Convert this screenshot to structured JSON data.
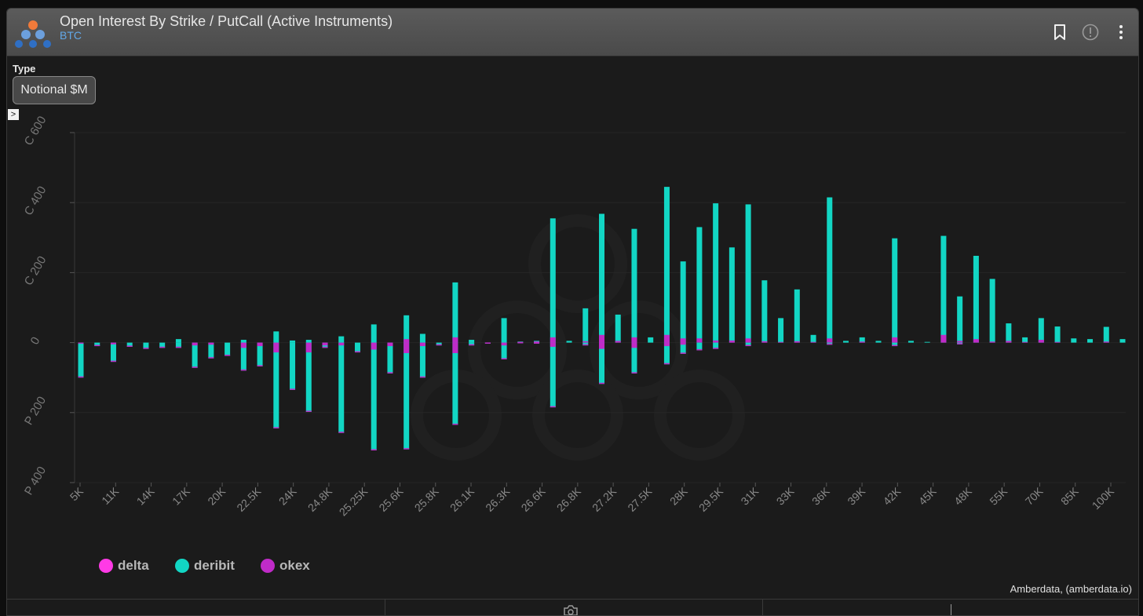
{
  "header": {
    "title": "Open Interest By Strike / PutCall (Active Instruments)",
    "subtitle": "BTC",
    "icons": [
      "bookmark-icon",
      "info-icon",
      "more-vertical-icon"
    ]
  },
  "controls": {
    "type_label": "Type",
    "type_value": "Notional $M"
  },
  "footer": {
    "attribution": "Amberdata, (amberdata.io)"
  },
  "colors": {
    "background": "#1b1b1b",
    "header": "#4f4f4f",
    "accent_link": "#62a8e8",
    "delta": "#ff3ae6",
    "deribit": "#12d6c4",
    "okex": "#c02bc8"
  },
  "chart_data": {
    "type": "bar",
    "stacked": true,
    "yticks": [
      "C 600",
      "C 400",
      "C 200",
      "0",
      "P 200",
      "P 400"
    ],
    "ytick_values": [
      600,
      400,
      200,
      0,
      -200,
      -400
    ],
    "ylim": [
      -400,
      600
    ],
    "xticks": [
      "5K",
      "11K",
      "14K",
      "17K",
      "20K",
      "22.5K",
      "24K",
      "24.8K",
      "25.25K",
      "25.6K",
      "25.8K",
      "26.1K",
      "26.3K",
      "26.6K",
      "26.8K",
      "27.2K",
      "27.5K",
      "28K",
      "29.5K",
      "31K",
      "33K",
      "36K",
      "39K",
      "42K",
      "45K",
      "48K",
      "55K",
      "70K",
      "85K",
      "100K"
    ],
    "legend": [
      {
        "name": "delta",
        "color": "#ff3ae6"
      },
      {
        "name": "deribit",
        "color": "#12d6c4"
      },
      {
        "name": "okex",
        "color": "#c02bc8"
      }
    ],
    "series_note": "values in Notional $M; positive = calls, negative = puts",
    "bars": [
      {
        "i": 0,
        "call": 0,
        "put": -100,
        "okex_call": 0,
        "okex_put": -3
      },
      {
        "i": 1,
        "call": 0,
        "put": -10,
        "okex_call": 0,
        "okex_put": 0
      },
      {
        "i": 2,
        "call": 0,
        "put": -55,
        "okex_call": 0,
        "okex_put": -5
      },
      {
        "i": 3,
        "call": 0,
        "put": -12,
        "okex_call": 0,
        "okex_put": 0
      },
      {
        "i": 4,
        "call": 0,
        "put": -18,
        "okex_call": 0,
        "okex_put": 0
      },
      {
        "i": 5,
        "call": 0,
        "put": -15,
        "okex_call": 0,
        "okex_put": 0
      },
      {
        "i": 6,
        "call": 10,
        "put": -15,
        "okex_call": 0,
        "okex_put": 0
      },
      {
        "i": 7,
        "call": 0,
        "put": -72,
        "okex_call": 0,
        "okex_put": -8
      },
      {
        "i": 8,
        "call": 0,
        "put": -45,
        "okex_call": 0,
        "okex_put": -6
      },
      {
        "i": 9,
        "call": 0,
        "put": -38,
        "okex_call": 0,
        "okex_put": 0
      },
      {
        "i": 10,
        "call": 8,
        "put": -80,
        "okex_call": 0,
        "okex_put": -15
      },
      {
        "i": 11,
        "call": 0,
        "put": -68,
        "okex_call": 0,
        "okex_put": -10
      },
      {
        "i": 12,
        "call": 32,
        "put": -245,
        "okex_call": 0,
        "okex_put": -28
      },
      {
        "i": 13,
        "call": 6,
        "put": -135,
        "okex_call": 0,
        "okex_put": 0
      },
      {
        "i": 14,
        "call": 8,
        "put": -198,
        "okex_call": 0,
        "okex_put": -28
      },
      {
        "i": 15,
        "call": 0,
        "put": -15,
        "okex_call": 0,
        "okex_put": -8
      },
      {
        "i": 16,
        "call": 18,
        "put": -258,
        "okex_call": 0,
        "okex_put": -8
      },
      {
        "i": 17,
        "call": 0,
        "put": -28,
        "okex_call": 0,
        "okex_put": 0
      },
      {
        "i": 18,
        "call": 52,
        "put": -308,
        "okex_call": 0,
        "okex_put": -20
      },
      {
        "i": 19,
        "call": 0,
        "put": -88,
        "okex_call": 0,
        "okex_put": -10
      },
      {
        "i": 20,
        "call": 78,
        "put": -305,
        "okex_call": 10,
        "okex_put": -30
      },
      {
        "i": 21,
        "call": 25,
        "put": -100,
        "okex_call": 0,
        "okex_put": -10
      },
      {
        "i": 22,
        "call": 0,
        "put": -8,
        "okex_call": 0,
        "okex_put": 0
      },
      {
        "i": 23,
        "call": 172,
        "put": -235,
        "okex_call": 15,
        "okex_put": -30
      },
      {
        "i": 24,
        "call": 8,
        "put": -8,
        "okex_call": 0,
        "okex_put": 0
      },
      {
        "i": 25,
        "call": 0,
        "put": -3,
        "okex_call": 0,
        "okex_put": -2
      },
      {
        "i": 26,
        "call": 70,
        "put": -48,
        "okex_call": 0,
        "okex_put": -8
      },
      {
        "i": 27,
        "call": 3,
        "put": -2,
        "okex_call": 2,
        "okex_put": 0
      },
      {
        "i": 28,
        "call": 5,
        "put": -3,
        "okex_call": 3,
        "okex_put": 0
      },
      {
        "i": 29,
        "call": 355,
        "put": -185,
        "okex_call": 15,
        "okex_put": -12
      },
      {
        "i": 30,
        "call": 5,
        "put": 0,
        "okex_call": 0,
        "okex_put": 0
      },
      {
        "i": 31,
        "call": 98,
        "put": -8,
        "okex_call": 4,
        "okex_put": 0
      },
      {
        "i": 32,
        "call": 368,
        "put": -118,
        "okex_call": 22,
        "okex_put": -18
      },
      {
        "i": 33,
        "call": 80,
        "put": 0,
        "okex_call": 5,
        "okex_put": 0
      },
      {
        "i": 34,
        "call": 325,
        "put": -88,
        "okex_call": 15,
        "okex_put": -15
      },
      {
        "i": 35,
        "call": 15,
        "put": 0,
        "okex_call": 0,
        "okex_put": 0
      },
      {
        "i": 36,
        "call": 445,
        "put": -62,
        "okex_call": 22,
        "okex_put": -10
      },
      {
        "i": 37,
        "call": 232,
        "put": -32,
        "okex_call": 12,
        "okex_put": -6
      },
      {
        "i": 38,
        "call": 330,
        "put": -22,
        "okex_call": 12,
        "okex_put": 0
      },
      {
        "i": 39,
        "call": 398,
        "put": -18,
        "okex_call": 6,
        "okex_put": 0
      },
      {
        "i": 40,
        "call": 272,
        "put": 0,
        "okex_call": 6,
        "okex_put": 0
      },
      {
        "i": 41,
        "call": 395,
        "put": -10,
        "okex_call": 12,
        "okex_put": 0
      },
      {
        "i": 42,
        "call": 178,
        "put": 0,
        "okex_call": 4,
        "okex_put": 0
      },
      {
        "i": 43,
        "call": 70,
        "put": 0,
        "okex_call": 2,
        "okex_put": 0
      },
      {
        "i": 44,
        "call": 152,
        "put": 0,
        "okex_call": 4,
        "okex_put": 0
      },
      {
        "i": 45,
        "call": 22,
        "put": 0,
        "okex_call": 2,
        "okex_put": 0
      },
      {
        "i": 46,
        "call": 415,
        "put": -6,
        "okex_call": 12,
        "okex_put": 0
      },
      {
        "i": 47,
        "call": 5,
        "put": 0,
        "okex_call": 0,
        "okex_put": 0
      },
      {
        "i": 48,
        "call": 15,
        "put": 0,
        "okex_call": 3,
        "okex_put": 0
      },
      {
        "i": 49,
        "call": 5,
        "put": 0,
        "okex_call": 0,
        "okex_put": 0
      },
      {
        "i": 50,
        "call": 298,
        "put": -10,
        "okex_call": 15,
        "okex_put": 0
      },
      {
        "i": 51,
        "call": 5,
        "put": 0,
        "okex_call": 0,
        "okex_put": 0
      },
      {
        "i": 52,
        "call": 2,
        "put": 0,
        "okex_call": 0,
        "okex_put": 0
      },
      {
        "i": 53,
        "call": 305,
        "put": 0,
        "okex_call": 22,
        "okex_put": 0
      },
      {
        "i": 54,
        "call": 132,
        "put": -5,
        "okex_call": 5,
        "okex_put": 0
      },
      {
        "i": 55,
        "call": 248,
        "put": 0,
        "okex_call": 10,
        "okex_put": 0
      },
      {
        "i": 56,
        "call": 182,
        "put": 0,
        "okex_call": 3,
        "okex_put": 0
      },
      {
        "i": 57,
        "call": 55,
        "put": 0,
        "okex_call": 5,
        "okex_put": 0
      },
      {
        "i": 58,
        "call": 15,
        "put": 0,
        "okex_call": 2,
        "okex_put": 0
      },
      {
        "i": 59,
        "call": 70,
        "put": 0,
        "okex_call": 8,
        "okex_put": 0
      },
      {
        "i": 60,
        "call": 46,
        "put": 0,
        "okex_call": 2,
        "okex_put": 0
      },
      {
        "i": 61,
        "call": 12,
        "put": 0,
        "okex_call": 0,
        "okex_put": 0
      },
      {
        "i": 62,
        "call": 10,
        "put": 0,
        "okex_call": 0,
        "okex_put": 0
      },
      {
        "i": 63,
        "call": 45,
        "put": 0,
        "okex_call": 3,
        "okex_put": 0
      },
      {
        "i": 64,
        "call": 10,
        "put": 0,
        "okex_call": 0,
        "okex_put": 0
      }
    ]
  }
}
